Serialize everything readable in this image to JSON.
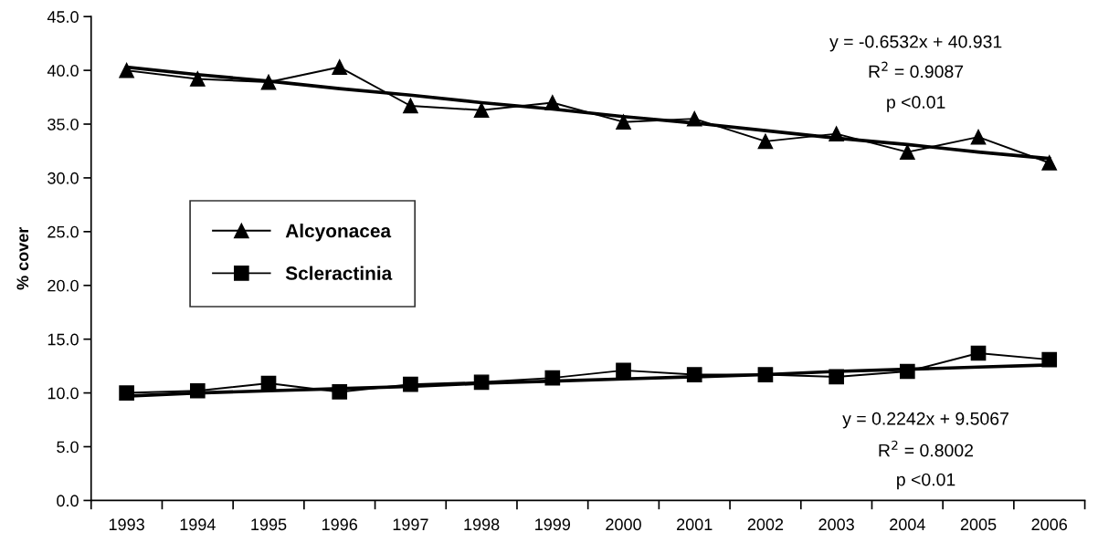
{
  "chart_data": {
    "type": "line",
    "ylabel": "% cover",
    "categories": [
      "1993",
      "1994",
      "1995",
      "1996",
      "1997",
      "1998",
      "1999",
      "2000",
      "2001",
      "2002",
      "2003",
      "2004",
      "2005",
      "2006"
    ],
    "series": [
      {
        "name": "Alcyonacea",
        "color": "#000000",
        "marker": "triangle",
        "values": [
          40.0,
          39.2,
          38.9,
          40.3,
          36.7,
          36.3,
          37.0,
          35.2,
          35.5,
          33.4,
          34.1,
          32.4,
          33.8,
          31.4
        ]
      },
      {
        "name": "Scleractinia",
        "color": "#000000",
        "marker": "square",
        "values": [
          10.0,
          10.2,
          10.9,
          10.1,
          10.8,
          11.0,
          11.4,
          12.1,
          11.7,
          11.7,
          11.5,
          12.0,
          13.7,
          13.1
        ]
      },
      {
        "type": "line",
        "color": "#000000",
        "marker": "none",
        "values": [
          40.3,
          39.6,
          39.0,
          38.3,
          37.7,
          37.0,
          36.4,
          35.7,
          35.1,
          34.4,
          33.7,
          33.1,
          32.4,
          31.8
        ]
      },
      {
        "type": "line",
        "color": "#000000",
        "marker": "none",
        "values": [
          9.7,
          10.0,
          10.2,
          10.4,
          10.6,
          10.9,
          11.1,
          11.3,
          11.5,
          11.7,
          12.0,
          12.2,
          12.4,
          12.6
        ]
      }
    ],
    "ylim": [
      0,
      45
    ],
    "yticks": [
      {
        "value": 0,
        "label": "0.0"
      },
      {
        "value": 5,
        "label": "5.0"
      },
      {
        "value": 10,
        "label": "10.0"
      },
      {
        "value": 15,
        "label": "15.0"
      },
      {
        "value": 20,
        "label": "20.0"
      },
      {
        "value": 25,
        "label": "25.0"
      },
      {
        "value": 30,
        "label": "30.0"
      },
      {
        "value": 35,
        "label": "35.0"
      },
      {
        "value": 40,
        "label": "40.0"
      },
      {
        "value": 45,
        "label": "45.0"
      }
    ],
    "grid": false,
    "legend": "left",
    "line_style": "solid",
    "annotations": [
      "y = -0.6532x + 40.931",
      "R$^{2}$ = 0.9087",
      "p <0.01",
      "y = 0.2242x + 9.5067",
      "R$^{2}$ = 0.8002",
      "p <0.01"
    ]
  }
}
